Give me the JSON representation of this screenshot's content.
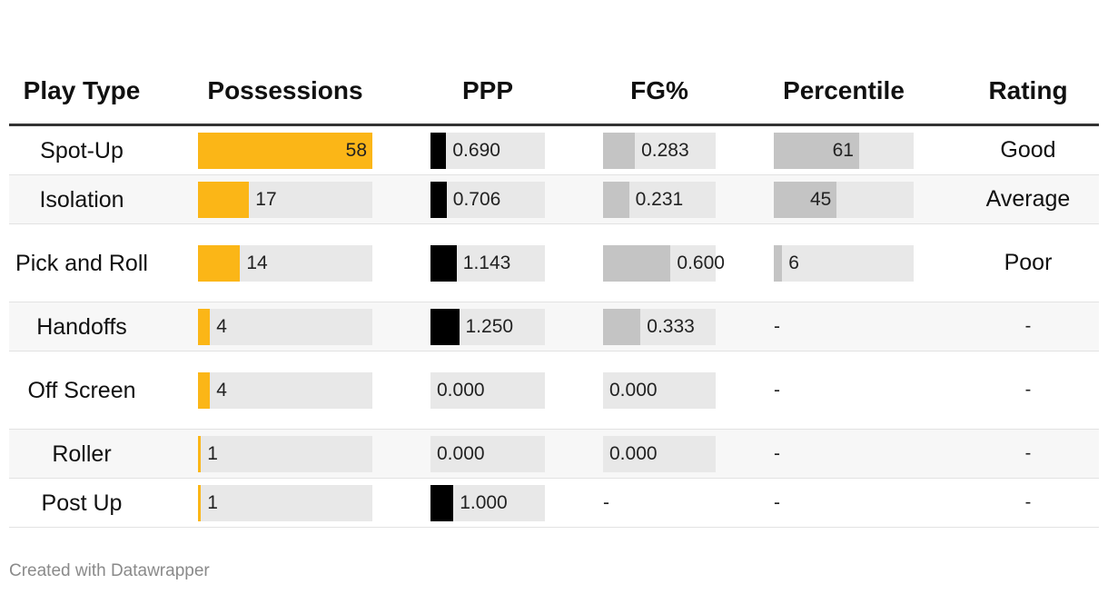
{
  "headers": {
    "play_type": "Play Type",
    "possessions": "Possessions",
    "ppp": "PPP",
    "fg": "FG%",
    "percentile": "Percentile",
    "rating": "Rating"
  },
  "colors": {
    "possessions_bar": "#fbb617",
    "ppp_bar": "#000000",
    "fg_bar": "#c4c4c4",
    "percentile_bar": "#c4c4c4",
    "track": "#e8e8e8"
  },
  "footer": "Created with Datawrapper",
  "chart_data": {
    "type": "table",
    "columns": [
      "Play Type",
      "Possessions",
      "PPP",
      "FG%",
      "Percentile",
      "Rating"
    ],
    "scales": {
      "possessions_max": 58,
      "ppp_max": 5,
      "fg_max": 1,
      "percentile_max": 100
    },
    "rows": [
      {
        "play_type": "Spot-Up",
        "possessions": 58,
        "possessions_label": "58",
        "ppp": 0.69,
        "ppp_label": "0.690",
        "fg": 0.283,
        "fg_label": "0.283",
        "percentile": 61,
        "percentile_label": "61",
        "rating": "Good"
      },
      {
        "play_type": "Isolation",
        "possessions": 17,
        "possessions_label": "17",
        "ppp": 0.706,
        "ppp_label": "0.706",
        "fg": 0.231,
        "fg_label": "0.231",
        "percentile": 45,
        "percentile_label": "45",
        "rating": "Average"
      },
      {
        "play_type": "Pick and Roll",
        "possessions": 14,
        "possessions_label": "14",
        "ppp": 1.143,
        "ppp_label": "1.143",
        "fg": 0.6,
        "fg_label": "0.600",
        "percentile": 6,
        "percentile_label": "6",
        "rating": "Poor"
      },
      {
        "play_type": "Handoffs",
        "possessions": 4,
        "possessions_label": "4",
        "ppp": 1.25,
        "ppp_label": "1.250",
        "fg": 0.333,
        "fg_label": "0.333",
        "percentile": null,
        "percentile_label": "-",
        "rating": "-"
      },
      {
        "play_type": "Off Screen",
        "possessions": 4,
        "possessions_label": "4",
        "ppp": 0,
        "ppp_label": "0.000",
        "fg": 0,
        "fg_label": "0.000",
        "percentile": null,
        "percentile_label": "-",
        "rating": "-"
      },
      {
        "play_type": "Roller",
        "possessions": 1,
        "possessions_label": "1",
        "ppp": 0,
        "ppp_label": "0.000",
        "fg": 0,
        "fg_label": "0.000",
        "percentile": null,
        "percentile_label": "-",
        "rating": "-"
      },
      {
        "play_type": "Post Up",
        "possessions": 1,
        "possessions_label": "1",
        "ppp": 1,
        "ppp_label": "1.000",
        "fg": null,
        "fg_label": "-",
        "percentile": null,
        "percentile_label": "-",
        "rating": "-"
      }
    ]
  }
}
